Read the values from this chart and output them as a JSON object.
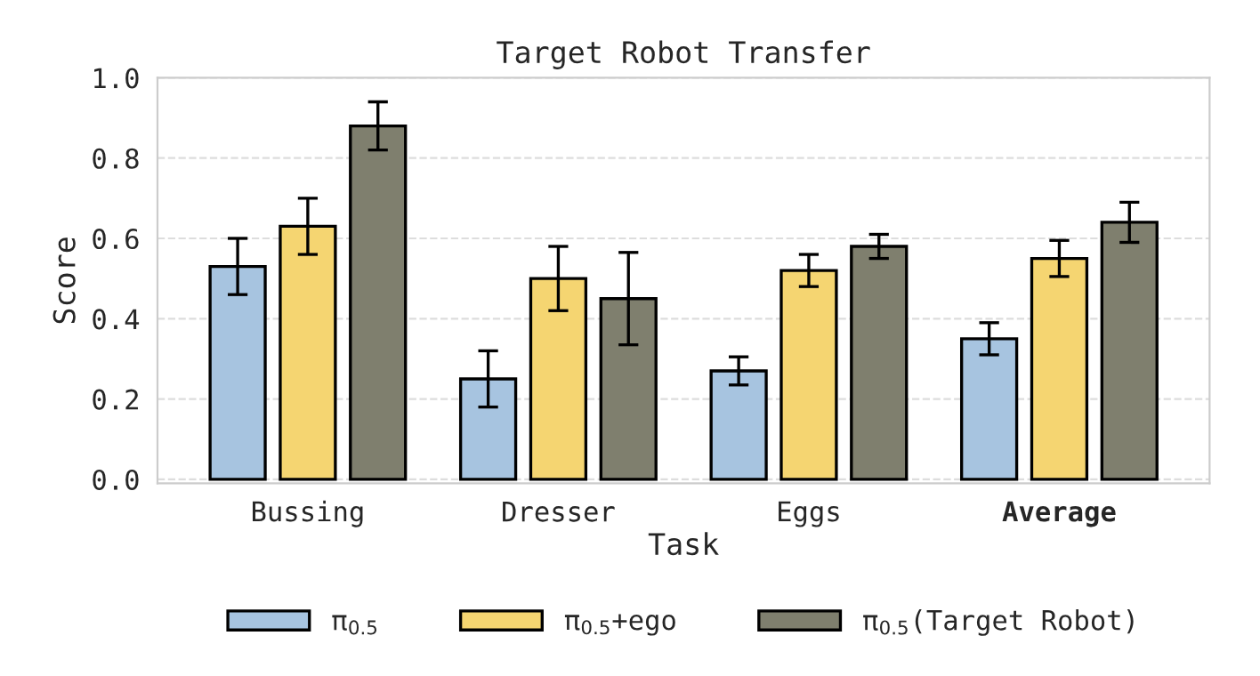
{
  "chart_data": {
    "type": "bar",
    "title": "Target Robot Transfer",
    "xlabel": "Task",
    "ylabel": "Score",
    "categories": [
      "Bussing",
      "Dresser",
      "Eggs",
      "Average"
    ],
    "series": [
      {
        "name": "π$_{0.5}$",
        "color": "#a7c4e0",
        "values": [
          0.53,
          0.25,
          0.27,
          0.35
        ],
        "errors": [
          0.07,
          0.07,
          0.035,
          0.04
        ]
      },
      {
        "name": "π$_{0.5}$+ego",
        "color": "#f5d571",
        "values": [
          0.63,
          0.5,
          0.52,
          0.55
        ],
        "errors": [
          0.07,
          0.08,
          0.04,
          0.045
        ]
      },
      {
        "name": "π$_{0.5}$(Target Robot)",
        "color": "#7f7f6e",
        "values": [
          0.88,
          0.45,
          0.58,
          0.64
        ],
        "errors": [
          0.06,
          0.115,
          0.03,
          0.05
        ]
      }
    ],
    "ylim": [
      -0.01,
      1.0
    ],
    "yticks": [
      {
        "value": 0,
        "label": "0.0"
      },
      0.2,
      0.4,
      0.6,
      0.8,
      {
        "value": 1,
        "label": "1.0"
      }
    ],
    "grid": "y",
    "legend": "bottom"
  }
}
